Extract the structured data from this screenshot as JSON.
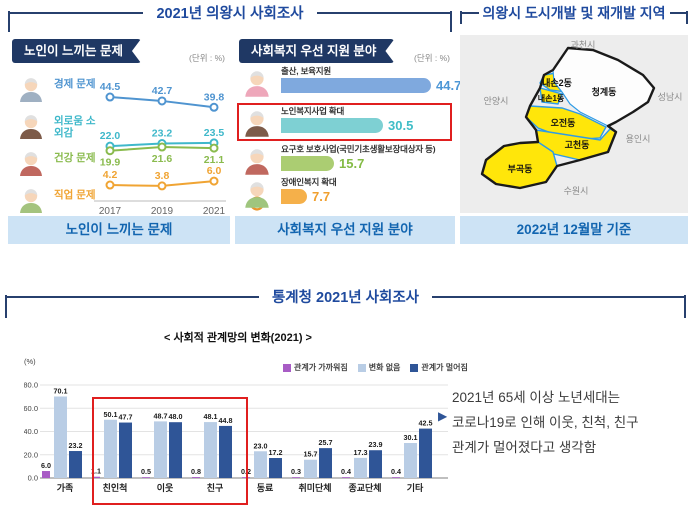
{
  "colors": {
    "header_blue": "#1f4a9e",
    "frame_navy": "#27406e",
    "badge_navy": "#1f3864",
    "caption_bg": "#cde3f5",
    "caption_text": "#1265b0",
    "highlight_red": "#e01f1f",
    "map_yellow": "#ffe60a",
    "map_boundary_blue": "#2e9be6"
  },
  "top_section": {
    "title": "2021년 의왕시 사회조사",
    "elderly_panel": {
      "badge": "노인이 느끼는 문제",
      "unit": "(단위 : %)",
      "caption": "노인이 느끼는 문제"
    },
    "welfare_panel": {
      "badge": "사회복지 우선 지원 분야",
      "unit": "(단위 : %)",
      "caption": "사회복지 우선 지원 분야"
    },
    "map_panel": {
      "title": "의왕시 도시개발 및 재개발 지역",
      "caption": "2022년 12월말 기준",
      "neighbors": {
        "gwacheon": "과천시",
        "anyang": "안양시",
        "seongnam": "성남시",
        "yongin": "용인시",
        "suwon": "수원시"
      },
      "districts": {
        "cheonggye": "청계동",
        "naeson2": "내손2동",
        "naeson1": "내손1동",
        "ojeon": "오전동",
        "gocheon": "고천동",
        "bugok": "부곡동"
      }
    }
  },
  "bottom_section": {
    "title": "통계청 2021년 사회조사",
    "note_bullet": "▶",
    "note_lines": [
      "2021년 65세 이상 노년세대는",
      "코로나19로 인해 이웃, 친척, 친구",
      "관계가 멀어졌다고 생각함"
    ]
  },
  "chart_data": [
    {
      "type": "line",
      "title": "노인이 느끼는 문제",
      "unit": "(단위 : %)",
      "categories": [
        "2017",
        "2019",
        "2021"
      ],
      "series": [
        {
          "name": "경제 문제",
          "icon": "elderly-man-icon",
          "color": "#4f94d0",
          "values": [
            44.5,
            42.7,
            39.8
          ],
          "label_position": "above"
        },
        {
          "name": "외로움 소외감",
          "icon": "elderly-reading-icon",
          "color": "#3fb8ca",
          "values": [
            22.0,
            23.2,
            23.5
          ],
          "label_position": "above"
        },
        {
          "name": "건강 문제",
          "icon": "elderly-worker-icon",
          "color": "#8abb4e",
          "values": [
            19.9,
            21.6,
            21.1
          ],
          "label_position": "below"
        },
        {
          "name": "직업 문제",
          "icon": "elderly-farmer-icon",
          "color": "#f0a433",
          "values": [
            4.2,
            3.8,
            6.0
          ],
          "label_position": "above"
        }
      ]
    },
    {
      "type": "bar",
      "orientation": "horizontal",
      "title": "사회복지 우선 지원 분야",
      "unit": "(단위 : %)",
      "categories": [
        "출산, 보육지원",
        "노인복지사업 확대",
        "요구호 보호사업(국민기초생활보장대상자 등)",
        "장애인복지 확대"
      ],
      "values": [
        44.7,
        30.5,
        15.7,
        7.7
      ],
      "bar_colors": [
        "#7fa9de",
        "#7ed0d3",
        "#abcd72",
        "#f5b04a"
      ],
      "value_colors": [
        "#4e97d6",
        "#3fbdc7",
        "#84bb45",
        "#f09f2e"
      ],
      "icons": [
        "mother-baby-icon",
        "elderly-reading-icon",
        "elderly-woman-icon",
        "wheelchair-icon"
      ],
      "highlight_index": 1,
      "xlim": [
        0,
        50
      ]
    },
    {
      "type": "bar",
      "title": "< 사회적 관계망의 변화(2021) >",
      "ylabel": "(%)",
      "ylim": [
        0,
        80
      ],
      "yticks": [
        0,
        20,
        40,
        60,
        80
      ],
      "legend_position": "top-right",
      "categories": [
        "가족",
        "친인척",
        "이웃",
        "친구",
        "동료",
        "취미단체",
        "종교단체",
        "기타"
      ],
      "series": [
        {
          "name": "관계가 가까워짐",
          "color": "#a85cc5",
          "values": [
            6.0,
            1.1,
            0.5,
            0.8,
            0.2,
            0.3,
            0.4,
            0.4
          ]
        },
        {
          "name": "변화 없음",
          "color": "#b9cde5",
          "values": [
            70.1,
            50.1,
            48.7,
            48.1,
            23.0,
            15.7,
            17.3,
            30.1
          ]
        },
        {
          "name": "관계가 멀어짐",
          "color": "#2f5597",
          "values": [
            23.2,
            47.7,
            48.0,
            44.8,
            17.2,
            25.7,
            23.9,
            42.5
          ]
        }
      ],
      "highlight_categories": [
        "친인척",
        "이웃",
        "친구"
      ]
    }
  ]
}
